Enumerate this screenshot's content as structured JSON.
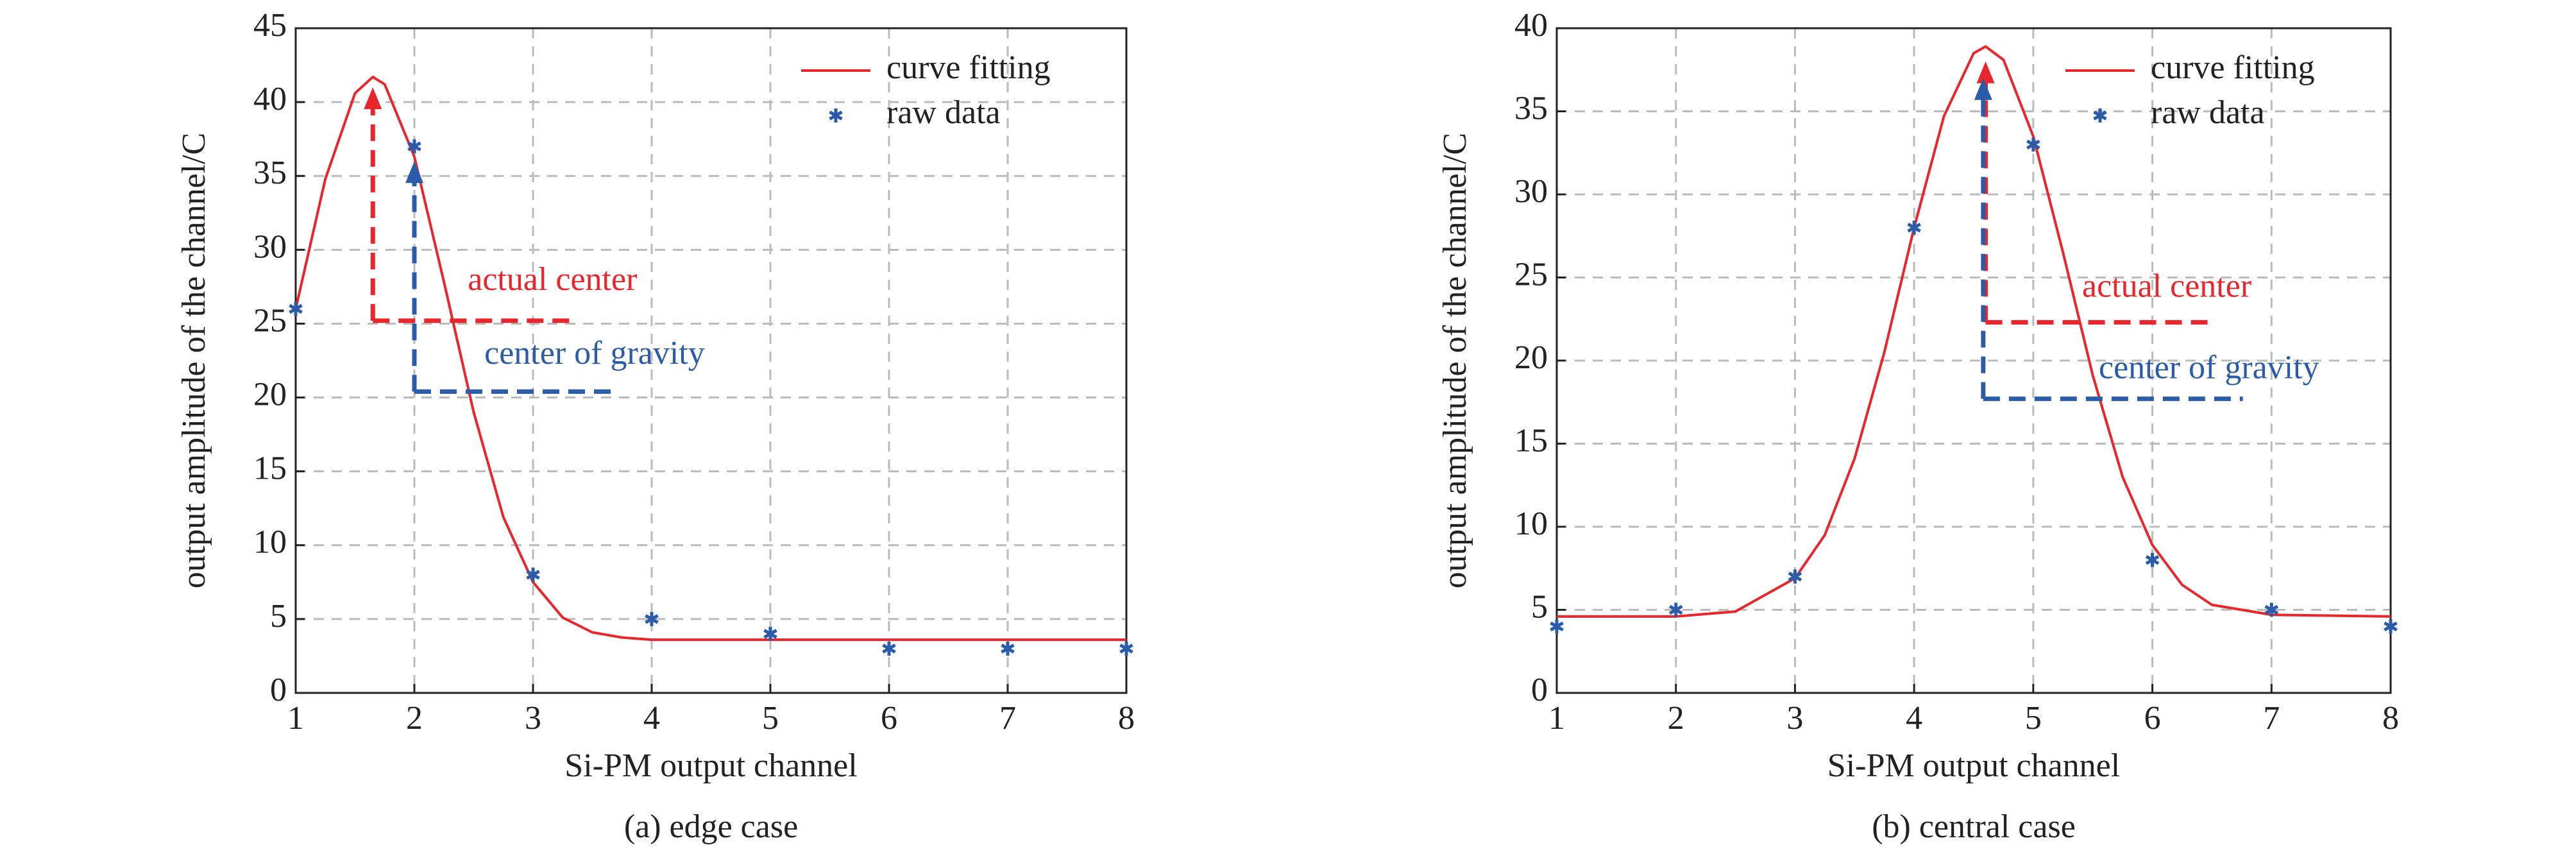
{
  "chart_data": [
    {
      "type": "line",
      "caption": "(a) edge case",
      "xlabel": "Si-PM output channel",
      "ylabel": "output amplitude of the channel/C",
      "xlim": [
        1,
        8
      ],
      "xticks": [
        1,
        2,
        3,
        4,
        5,
        6,
        7,
        8
      ],
      "ylim": [
        0,
        45
      ],
      "yticks": [
        0,
        5,
        10,
        15,
        20,
        25,
        30,
        35,
        40,
        45
      ],
      "grid": true,
      "legend": "upper right",
      "series": [
        {
          "name": "curve fitting",
          "color": "#e8262b",
          "style": "line",
          "x": [
            1,
            1.25,
            1.5,
            1.65,
            1.75,
            2,
            2.25,
            2.5,
            2.75,
            3,
            3.25,
            3.5,
            3.75,
            4,
            5,
            6,
            7,
            8
          ],
          "values": [
            26.0,
            34.8,
            40.6,
            41.7,
            41.2,
            36.3,
            27.8,
            19.0,
            11.9,
            7.5,
            5.1,
            4.1,
            3.75,
            3.6,
            3.6,
            3.6,
            3.6,
            3.6
          ]
        },
        {
          "name": "raw data",
          "color": "#2a5caa",
          "style": "marker",
          "x": [
            1,
            2,
            3,
            4,
            5,
            6,
            7,
            8
          ],
          "values": [
            26,
            37,
            8,
            5,
            4,
            3,
            3,
            3
          ]
        }
      ],
      "annotations": [
        {
          "text": "actual center",
          "color": "#e8262b",
          "x": 1.65,
          "y": 25.2,
          "y_top": 41,
          "x_end": 3.38,
          "text_x": 2.45,
          "text_y": 27.8
        },
        {
          "text": "center of gravity",
          "color": "#2a5caa",
          "x": 2,
          "y": 20.4,
          "y_top": 36,
          "x_end": 3.7,
          "text_x": 2.59,
          "text_y": 22.8
        }
      ]
    },
    {
      "type": "line",
      "caption": "(b) central case",
      "xlabel": "Si-PM output channel",
      "ylabel": "output amplitude of the channel/C",
      "xlim": [
        1,
        8
      ],
      "xticks": [
        1,
        2,
        3,
        4,
        5,
        6,
        7,
        8
      ],
      "ylim": [
        0,
        40
      ],
      "yticks": [
        0,
        5,
        10,
        15,
        20,
        25,
        30,
        35,
        40
      ],
      "grid": true,
      "legend": "upper right",
      "series": [
        {
          "name": "curve fitting",
          "color": "#e8262b",
          "style": "line",
          "x": [
            1,
            2,
            2.5,
            3,
            3.25,
            3.5,
            3.75,
            4,
            4.25,
            4.5,
            4.6,
            4.75,
            5,
            5.25,
            5.5,
            5.75,
            6,
            6.25,
            6.5,
            7,
            8
          ],
          "values": [
            4.6,
            4.6,
            4.9,
            6.9,
            9.5,
            14.1,
            20.5,
            28.0,
            34.7,
            38.5,
            38.9,
            38.1,
            33.5,
            26.5,
            19.1,
            13.0,
            8.9,
            6.5,
            5.3,
            4.7,
            4.6
          ]
        },
        {
          "name": "raw data",
          "color": "#2a5caa",
          "style": "marker",
          "x": [
            1,
            2,
            3,
            4,
            5,
            6,
            7,
            8
          ],
          "values": [
            4,
            5,
            7,
            28,
            33,
            8,
            5,
            4
          ]
        }
      ],
      "annotations": [
        {
          "text": "actual center",
          "color": "#e8262b",
          "x": 4.6,
          "y": 22.3,
          "y_top": 38,
          "x_end": 6.5,
          "text_x": 5.41,
          "text_y": 24.3
        },
        {
          "text": "center of gravity",
          "color": "#2a5caa",
          "x": 4.58,
          "y": 17.7,
          "y_top": 37,
          "x_end": 6.76,
          "text_x": 5.55,
          "text_y": 19.4
        }
      ]
    }
  ]
}
